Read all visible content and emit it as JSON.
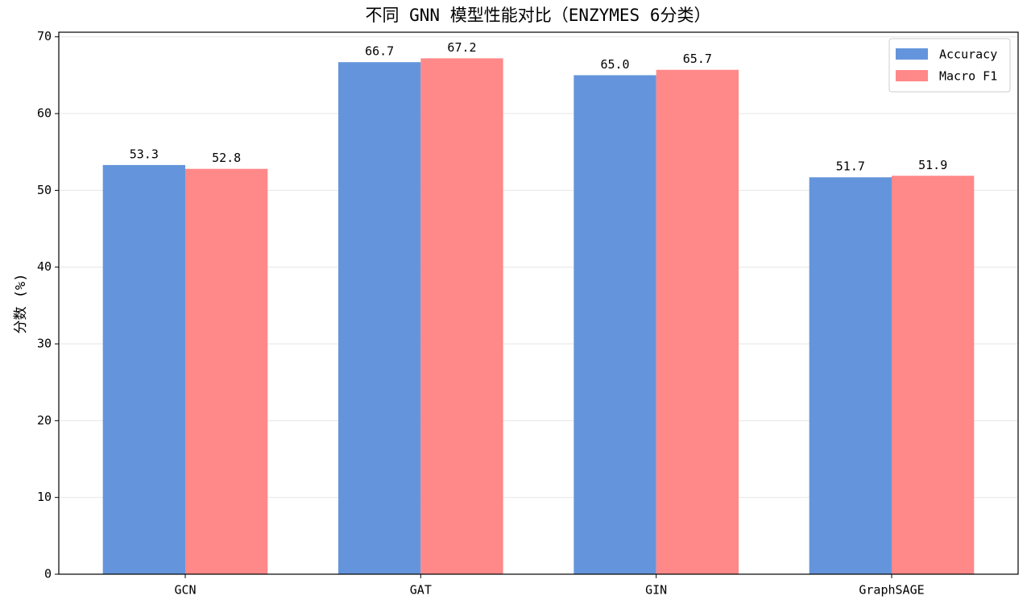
{
  "chart_data": {
    "type": "bar",
    "title": "不同 GNN 模型性能对比（ENZYMES 6分类）",
    "ylabel": "分数 (%)",
    "categories": [
      "GCN",
      "GAT",
      "GIN",
      "GraphSAGE"
    ],
    "series": [
      {
        "name": "Accuracy",
        "color": "#6495dc",
        "values": [
          53.3,
          66.7,
          65.0,
          51.7
        ],
        "value_labels": [
          "53.3",
          "66.7",
          "65.0",
          "51.7"
        ]
      },
      {
        "name": "Macro F1",
        "color": "#ff8888",
        "values": [
          52.8,
          67.2,
          65.7,
          51.9
        ],
        "value_labels": [
          "52.8",
          "67.2",
          "65.7",
          "51.9"
        ]
      }
    ],
    "ylim": [
      0,
      70.6
    ],
    "yticks": [
      0,
      10,
      20,
      30,
      40,
      50,
      60,
      70
    ],
    "grid": true,
    "legend": "upper right"
  }
}
